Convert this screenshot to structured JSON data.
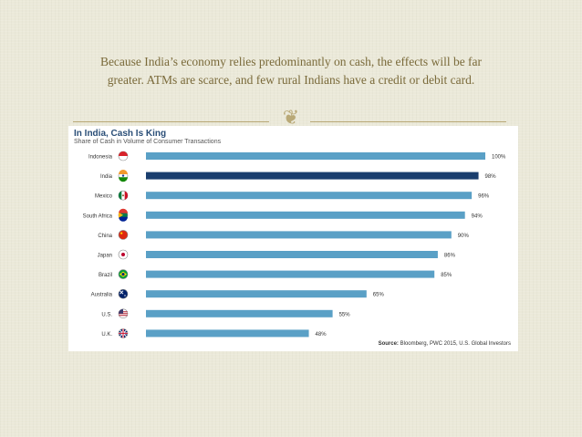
{
  "slide": {
    "caption_line1": "Because India’s economy relies predominantly on cash, the effects will be far",
    "caption_line2": "greater. ATMs are scarce, and few rural Indians have a credit or debit card.",
    "ornament_icon": "fleuron-icon"
  },
  "colors": {
    "bar": "#5aa0c6",
    "highlight_bar": "#1a3e6e",
    "title": "#2a4e77",
    "rule": "#b9a977",
    "caption": "#7a6a3a"
  },
  "chart_data": {
    "type": "bar",
    "orientation": "horizontal",
    "title": "In India, Cash Is King",
    "subtitle": "Share of Cash in Volume of Consumer Transactions",
    "source_label": "Source:",
    "source_text": "Bloomberg, PWC 2015, U.S. Global Investors",
    "categories": [
      "Indonesia",
      "India",
      "Mexico",
      "South Africa",
      "China",
      "Japan",
      "Brazil",
      "Australia",
      "U.S.",
      "U.K."
    ],
    "values": [
      100,
      98,
      96,
      94,
      90,
      86,
      85,
      65,
      55,
      48
    ],
    "value_labels": [
      "100%",
      "98%",
      "96%",
      "94%",
      "90%",
      "86%",
      "85%",
      "65%",
      "55%",
      "48%"
    ],
    "highlight": "India",
    "flag_icons": [
      "indonesia-flag-icon",
      "india-flag-icon",
      "mexico-flag-icon",
      "south-africa-flag-icon",
      "china-flag-icon",
      "japan-flag-icon",
      "brazil-flag-icon",
      "australia-flag-icon",
      "us-flag-icon",
      "uk-flag-icon"
    ],
    "xlim": [
      0,
      100
    ],
    "grid": false,
    "legend": "none"
  }
}
